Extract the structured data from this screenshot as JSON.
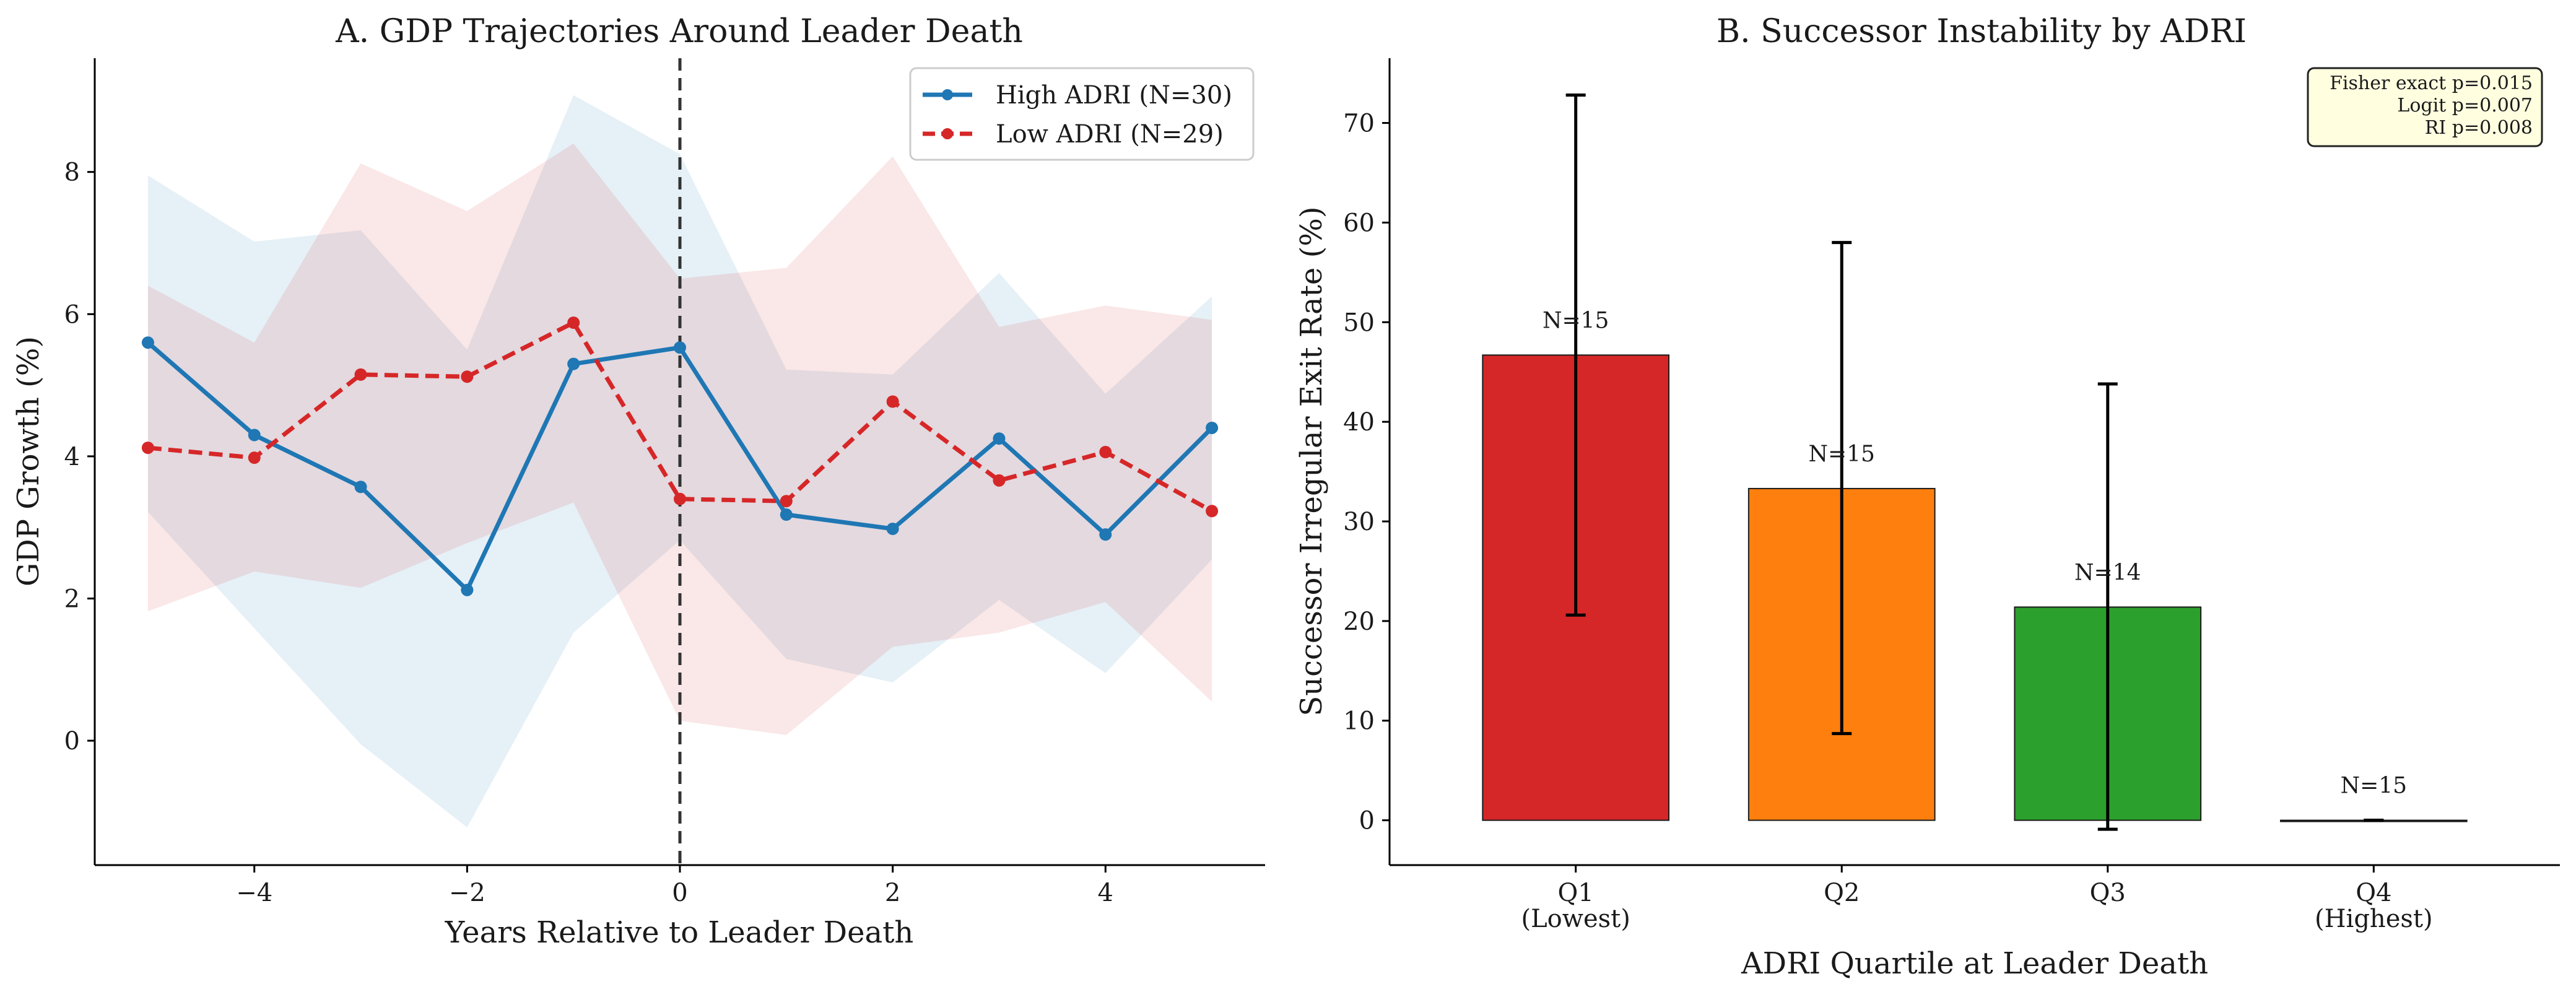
{
  "figure": {
    "panel_a_title": "A. GDP Trajectories Around Leader Death",
    "panel_b_title": "B. Successor Instability by ADRI"
  },
  "colors": {
    "high": "#1f77b4",
    "low": "#d62728",
    "q1": "#d62728",
    "q2": "#ff7f0e",
    "q3": "#2ca02c",
    "q4": "#9467bd",
    "stats_box_fill": "#ffffe0"
  },
  "chart_data": [
    {
      "type": "line",
      "title": "A. GDP Trajectories Around Leader Death",
      "xlabel": "Years Relative to Leader Death",
      "ylabel": "GDP Growth (%)",
      "xlim": [
        -5.5,
        5.5
      ],
      "ylim": [
        -1.75,
        9.6
      ],
      "xticks": [
        -4,
        -2,
        0,
        2,
        4
      ],
      "xtick_labels": [
        "−4",
        "−2",
        "0",
        "2",
        "4"
      ],
      "yticks": [
        0,
        2,
        4,
        6,
        8
      ],
      "ytick_labels": [
        "0",
        "2",
        "4",
        "6",
        "8"
      ],
      "x": [
        -5,
        -4,
        -3,
        -2,
        -1,
        0,
        1,
        2,
        3,
        4,
        5
      ],
      "vline": 0,
      "legend_position": "top-right",
      "series": [
        {
          "name": "High ADRI (N=30)",
          "values": [
            5.6,
            4.3,
            3.57,
            2.12,
            5.3,
            5.53,
            3.18,
            2.98,
            4.25,
            2.9,
            4.4
          ],
          "upper": [
            7.95,
            7.02,
            7.18,
            5.5,
            9.08,
            8.25,
            5.22,
            5.15,
            6.58,
            4.88,
            6.25
          ],
          "lower": [
            3.22,
            1.58,
            -0.05,
            -1.22,
            1.52,
            2.82,
            1.15,
            0.82,
            1.98,
            0.95,
            2.55
          ],
          "style": "solid"
        },
        {
          "name": "Low ADRI (N=29)",
          "values": [
            4.12,
            3.98,
            5.15,
            5.12,
            5.88,
            3.4,
            3.37,
            4.77,
            3.66,
            4.06,
            3.23
          ],
          "upper": [
            6.4,
            5.6,
            8.12,
            7.45,
            8.4,
            6.5,
            6.65,
            8.22,
            5.82,
            6.12,
            5.92
          ],
          "lower": [
            1.82,
            2.38,
            2.15,
            2.78,
            3.35,
            0.28,
            0.08,
            1.32,
            1.52,
            1.95,
            0.55
          ],
          "style": "dashed"
        }
      ]
    },
    {
      "type": "bar",
      "title": "B. Successor Instability by ADRI",
      "xlabel": "ADRI Quartile at Leader Death",
      "ylabel": "Successor Irregular Exit Rate (%)",
      "ylim": [
        -4.5,
        76.5
      ],
      "yticks": [
        0,
        10,
        20,
        30,
        40,
        50,
        60,
        70
      ],
      "ytick_labels": [
        "0",
        "10",
        "20",
        "30",
        "40",
        "50",
        "60",
        "70"
      ],
      "categories": [
        {
          "line1": "Q1",
          "line2": "(Lowest)"
        },
        {
          "line1": "Q2",
          "line2": ""
        },
        {
          "line1": "Q3",
          "line2": ""
        },
        {
          "line1": "Q4",
          "line2": "(Highest)"
        }
      ],
      "values": [
        46.7,
        33.3,
        21.4,
        0.0
      ],
      "err_low": [
        20.6,
        8.7,
        -0.9,
        0.0
      ],
      "err_high": [
        72.8,
        58.0,
        43.8,
        0.0
      ],
      "n_labels": [
        "N=15",
        "N=15",
        "N=14",
        "N=15"
      ],
      "stats_box": [
        "Fisher exact p=0.015",
        "Logit p=0.007",
        "RI p=0.008"
      ],
      "stats_box_position": "top-right"
    }
  ]
}
